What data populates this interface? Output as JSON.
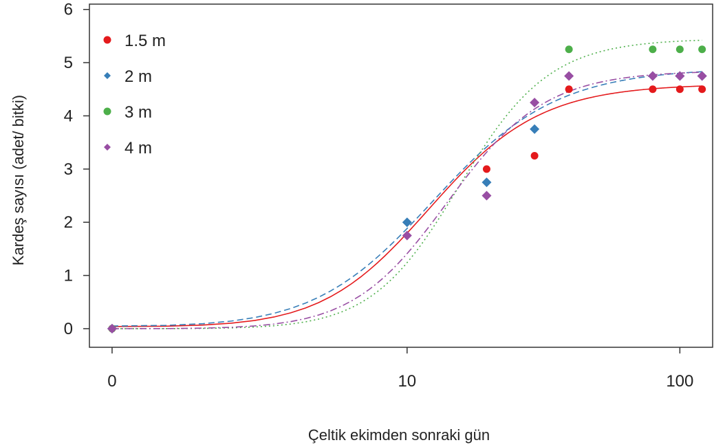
{
  "chart_data": {
    "type": "scatter",
    "xlabel": "Çeltik ekimden sonraki gün",
    "ylabel": "Kardeş sayısı (adet/ bitki)",
    "x_scale": "log1p",
    "x_ticks": [
      0,
      10,
      100
    ],
    "x_tick_labels": [
      "0",
      "10",
      "100"
    ],
    "y_ticks": [
      0,
      1,
      2,
      3,
      4,
      5,
      6
    ],
    "y_tick_labels": [
      "0",
      "1",
      "2",
      "3",
      "4",
      "5",
      "6"
    ],
    "ylim": [
      -0.35,
      6.1
    ],
    "legend_position": "top-left",
    "series": [
      {
        "name": "1.5 m",
        "color": "#e41a1c",
        "marker": "circle",
        "curve": "solid",
        "x": [
          0,
          20,
          30,
          40,
          80,
          100,
          120
        ],
        "y": [
          0,
          3.0,
          3.25,
          4.5,
          4.5,
          4.5,
          4.5
        ],
        "fit": {
          "L": 4.6,
          "c": 12.5,
          "k": 2.1,
          "base": 0.04
        }
      },
      {
        "name": "2 m",
        "color": "#377eb8",
        "marker": "diamond",
        "curve": "dashed",
        "x": [
          0,
          10,
          20,
          30,
          80,
          100,
          120
        ],
        "y": [
          0,
          2.0,
          2.75,
          3.75,
          4.75,
          4.75,
          4.75
        ],
        "fit": {
          "L": 4.9,
          "c": 13.0,
          "k": 1.9,
          "base": 0.05
        }
      },
      {
        "name": "3 m",
        "color": "#4daf4a",
        "marker": "circle",
        "curve": "dotted",
        "x": [
          0,
          40,
          80,
          100,
          120
        ],
        "y": [
          0,
          5.25,
          5.25,
          5.25,
          5.25
        ],
        "fit": {
          "L": 5.45,
          "c": 16.0,
          "k": 2.6,
          "base": 0.0
        }
      },
      {
        "name": "4 m",
        "color": "#984ea3",
        "marker": "diamond",
        "curve": "dashdot",
        "x": [
          0,
          10,
          20,
          30,
          40,
          80,
          100,
          120
        ],
        "y": [
          0,
          1.75,
          2.5,
          4.25,
          4.75,
          4.75,
          4.75,
          4.75
        ],
        "fit": {
          "L": 4.85,
          "c": 14.5,
          "k": 2.4,
          "base": 0.0
        }
      }
    ]
  }
}
